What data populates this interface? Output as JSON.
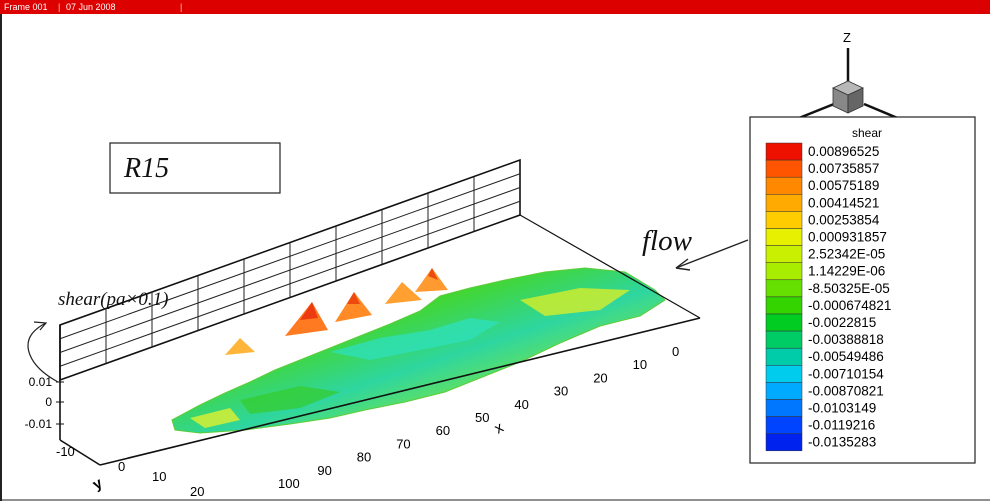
{
  "title_bar": {
    "frame_label": "Frame 001",
    "date_label": "07 Jun 2008"
  },
  "label_box": {
    "text": "R15"
  },
  "annotations": {
    "flow": "flow",
    "shear_axis": "shear(pa×0.1)"
  },
  "axes_triad": {
    "x": "X",
    "y": "Y",
    "z": "Z"
  },
  "legend": {
    "title": "shear",
    "levels": [
      "0.00896525",
      "0.00735857",
      "0.00575189",
      "0.00414521",
      "0.00253854",
      "0.000931857",
      "2.52342E-05",
      "1.14229E-06",
      "-8.50325E-05",
      "-0.000674821",
      "-0.0022815",
      "-0.00388818",
      "-0.00549486",
      "-0.00710154",
      "-0.00870821",
      "-0.0103149",
      "-0.0119216",
      "-0.0135283"
    ],
    "colors": [
      "#ee1100",
      "#ff5500",
      "#ff8800",
      "#ffaa00",
      "#ffcc00",
      "#e6f000",
      "#c8f000",
      "#a8ec00",
      "#66e000",
      "#33d400",
      "#00cc22",
      "#00cc66",
      "#00ccaa",
      "#00ccee",
      "#00aaff",
      "#0077ff",
      "#0044ff",
      "#0022ee"
    ]
  },
  "chart_data": {
    "type": "surface",
    "title": "R15",
    "zlabel": "shear(pa×0.1)",
    "xlabel": "x",
    "ylabel": "y",
    "x_ticks": [
      "0",
      "10",
      "20",
      "30",
      "40",
      "50",
      "60",
      "70",
      "80",
      "90",
      "100"
    ],
    "y_ticks": [
      "-10",
      "0",
      "10",
      "20"
    ],
    "z_ticks": [
      "0.01",
      "0",
      "-0.01"
    ],
    "xlim": [
      0,
      100
    ],
    "ylim": [
      -10,
      20
    ],
    "zlim": [
      -0.01,
      0.01
    ],
    "colorbar": {
      "label": "shear",
      "levels": [
        0.00896525,
        0.00735857,
        0.00575189,
        0.00414521,
        0.00253854,
        0.000931857,
        2.52342e-05,
        1.14229e-06,
        -8.50325e-05,
        -0.000674821,
        -0.0022815,
        -0.00388818,
        -0.00549486,
        -0.00710154,
        -0.00870821,
        -0.0103149,
        -0.0119216,
        -0.0135283
      ]
    }
  }
}
